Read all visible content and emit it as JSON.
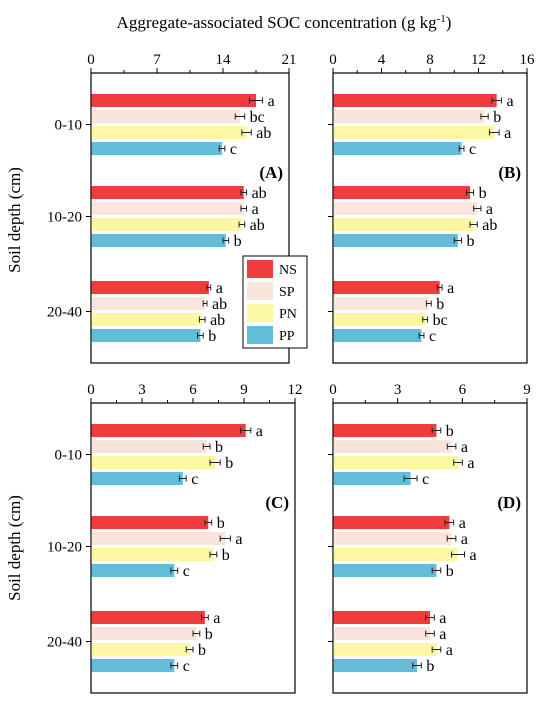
{
  "figure": {
    "title_main": "Aggregate-associated SOC concentration (g kg",
    "title_sup": "-1",
    "title_close": ")",
    "ylabel": "Soil depth (cm)"
  },
  "legend": {
    "items": [
      {
        "name": "NS",
        "color": "#f03c3c"
      },
      {
        "name": "SP",
        "color": "#f8e4da"
      },
      {
        "name": "PN",
        "color": "#fcf7a2"
      },
      {
        "name": "PP",
        "color": "#63bcd8"
      }
    ],
    "placement": "center-left of panel A"
  },
  "chart_data": [
    {
      "type": "bar",
      "panel_label": "(A)",
      "orientation": "horizontal",
      "categories": [
        "0-10",
        "10-20",
        "20-40"
      ],
      "xlim": [
        0,
        21
      ],
      "xticks": [
        0,
        7,
        14,
        21
      ],
      "series": [
        {
          "name": "NS",
          "values": [
            17.5,
            16.2,
            12.5
          ],
          "errors": [
            0.7,
            0.3,
            0.2
          ],
          "labels": [
            "a",
            "ab",
            "a"
          ]
        },
        {
          "name": "SP",
          "values": [
            15.8,
            16.2,
            12.1
          ],
          "errors": [
            0.5,
            0.3,
            0.2
          ],
          "labels": [
            "bc",
            "a",
            "ab"
          ]
        },
        {
          "name": "PN",
          "values": [
            16.5,
            16.0,
            11.8
          ],
          "errors": [
            0.5,
            0.3,
            0.3
          ],
          "labels": [
            "ab",
            "ab",
            "ab"
          ]
        },
        {
          "name": "PP",
          "values": [
            13.9,
            14.3,
            11.6
          ],
          "errors": [
            0.3,
            0.3,
            0.3
          ],
          "labels": [
            "c",
            "b",
            "b"
          ]
        }
      ]
    },
    {
      "type": "bar",
      "panel_label": "(B)",
      "orientation": "horizontal",
      "categories": [
        "0-10",
        "10-20",
        "20-40"
      ],
      "xlim": [
        0,
        16
      ],
      "xticks": [
        0,
        4,
        8,
        12,
        16
      ],
      "series": [
        {
          "name": "NS",
          "values": [
            13.5,
            11.3,
            8.8
          ],
          "errors": [
            0.4,
            0.3,
            0.2
          ],
          "labels": [
            "a",
            "b",
            "a"
          ]
        },
        {
          "name": "SP",
          "values": [
            12.5,
            11.9,
            7.9
          ],
          "errors": [
            0.3,
            0.3,
            0.2
          ],
          "labels": [
            "b",
            "a",
            "b"
          ]
        },
        {
          "name": "PN",
          "values": [
            13.3,
            11.6,
            7.6
          ],
          "errors": [
            0.4,
            0.3,
            0.2
          ],
          "labels": [
            "a",
            "ab",
            "bc"
          ]
        },
        {
          "name": "PP",
          "values": [
            10.6,
            10.3,
            7.3
          ],
          "errors": [
            0.2,
            0.3,
            0.2
          ],
          "labels": [
            "c",
            "b",
            "c"
          ]
        }
      ]
    },
    {
      "type": "bar",
      "panel_label": "(C)",
      "orientation": "horizontal",
      "categories": [
        "0-10",
        "10-20",
        "20-40"
      ],
      "xlim": [
        0,
        12
      ],
      "xticks": [
        0,
        3,
        6,
        9,
        12
      ],
      "series": [
        {
          "name": "NS",
          "values": [
            9.1,
            6.9,
            6.7
          ],
          "errors": [
            0.3,
            0.2,
            0.2
          ],
          "labels": [
            "a",
            "b",
            "a"
          ]
        },
        {
          "name": "SP",
          "values": [
            6.8,
            7.9,
            6.2
          ],
          "errors": [
            0.2,
            0.3,
            0.2
          ],
          "labels": [
            "b",
            "a",
            "b"
          ]
        },
        {
          "name": "PN",
          "values": [
            7.3,
            7.2,
            5.8
          ],
          "errors": [
            0.3,
            0.2,
            0.2
          ],
          "labels": [
            "b",
            "b",
            "b"
          ]
        },
        {
          "name": "PP",
          "values": [
            5.4,
            4.9,
            4.9
          ],
          "errors": [
            0.2,
            0.2,
            0.2
          ],
          "labels": [
            "c",
            "c",
            "c"
          ]
        }
      ]
    },
    {
      "type": "bar",
      "panel_label": "(D)",
      "orientation": "horizontal",
      "categories": [
        "0-10",
        "10-20",
        "20-40"
      ],
      "xlim": [
        0,
        9
      ],
      "xticks": [
        0,
        3,
        6,
        9
      ],
      "series": [
        {
          "name": "NS",
          "values": [
            4.8,
            5.4,
            4.5
          ],
          "errors": [
            0.2,
            0.2,
            0.2
          ],
          "labels": [
            "b",
            "a",
            "a"
          ]
        },
        {
          "name": "SP",
          "values": [
            5.5,
            5.5,
            4.5
          ],
          "errors": [
            0.2,
            0.2,
            0.2
          ],
          "labels": [
            "a",
            "a",
            "a"
          ]
        },
        {
          "name": "PN",
          "values": [
            5.8,
            5.8,
            4.8
          ],
          "errors": [
            0.2,
            0.3,
            0.2
          ],
          "labels": [
            "a",
            "a",
            "a"
          ]
        },
        {
          "name": "PP",
          "values": [
            3.6,
            4.8,
            3.9
          ],
          "errors": [
            0.3,
            0.2,
            0.2
          ],
          "labels": [
            "c",
            "b",
            "b"
          ]
        }
      ]
    }
  ]
}
